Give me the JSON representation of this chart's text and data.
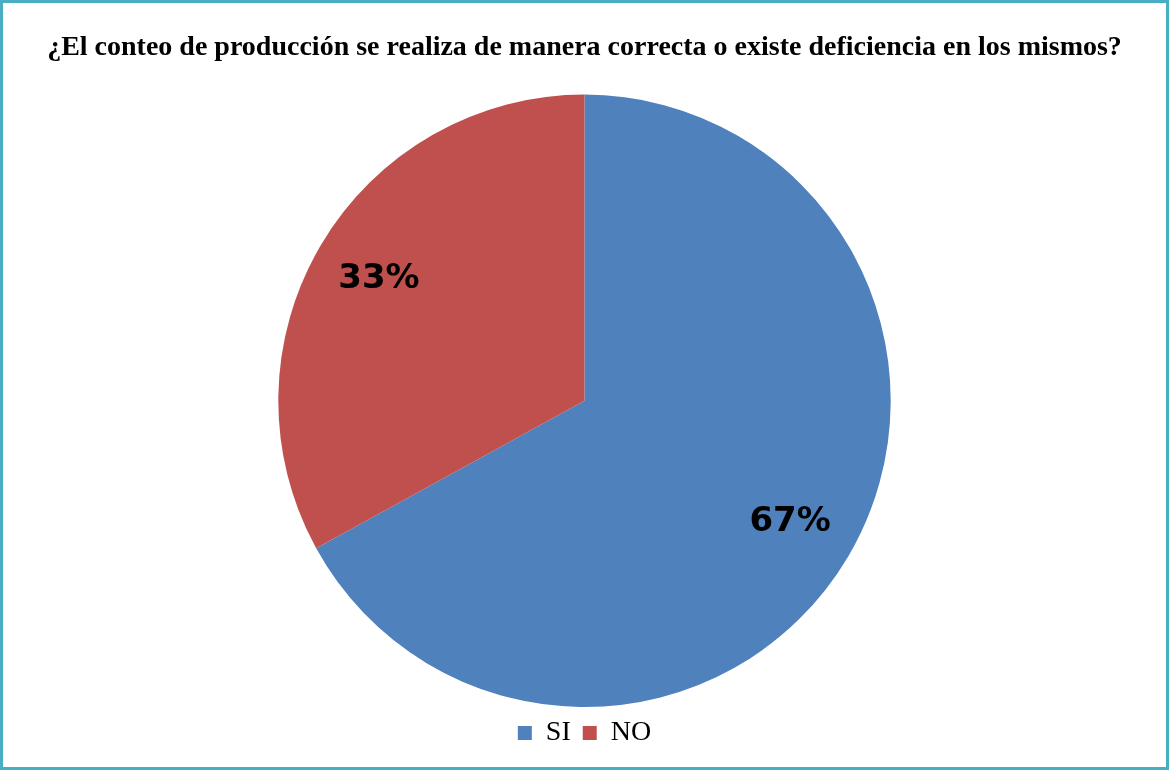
{
  "chart_data": {
    "type": "pie",
    "title": "¿El conteo de producción se realiza de manera correcta o existe deficiencia en los mismos?",
    "categories": [
      "SI",
      "NO"
    ],
    "values": [
      67,
      33
    ],
    "colors": [
      "#4f81bd",
      "#c0504d"
    ],
    "value_labels": [
      "67%",
      "33%"
    ],
    "legend": "bottom"
  }
}
